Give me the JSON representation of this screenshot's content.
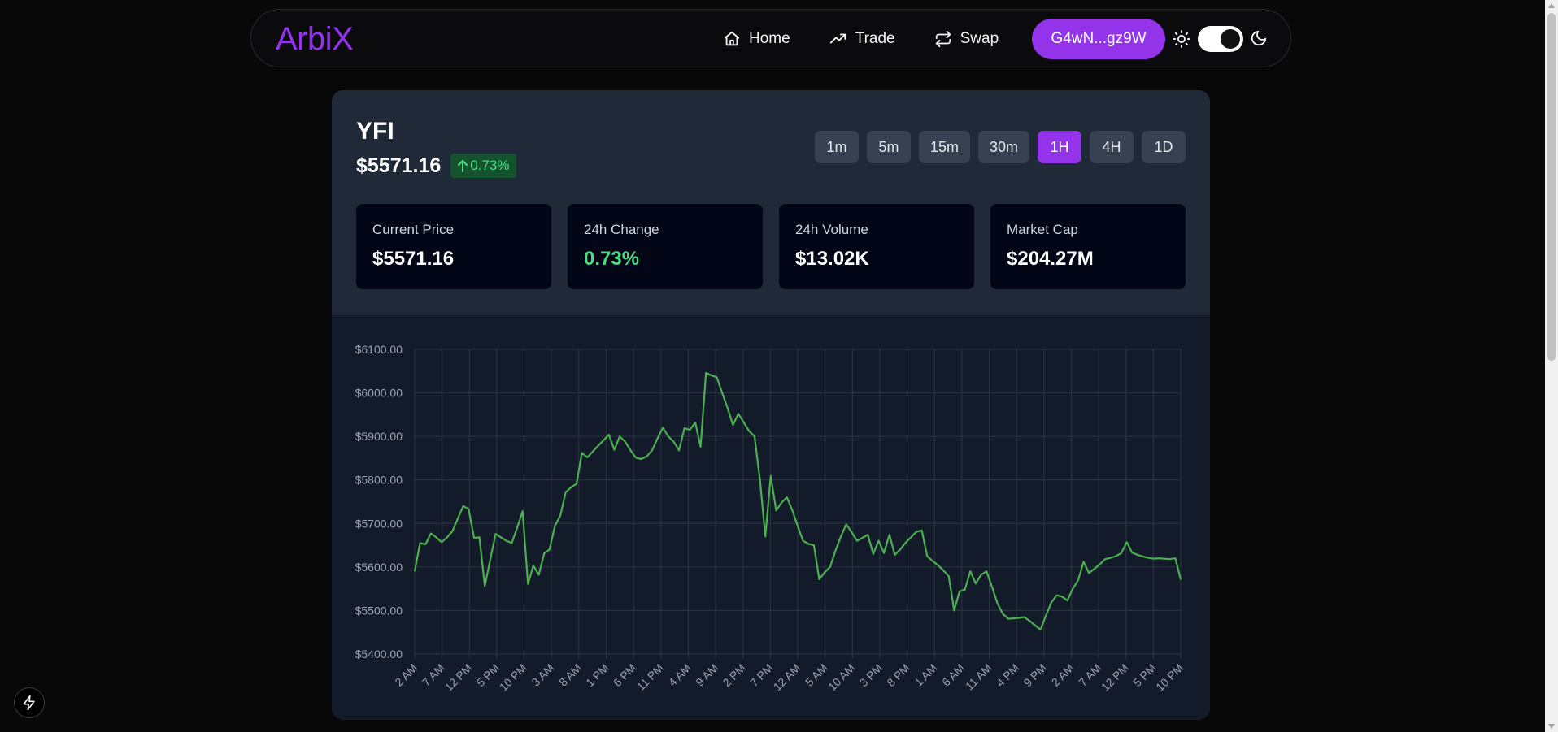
{
  "app": {
    "logo": "ArbiX"
  },
  "nav": {
    "links": [
      {
        "label": "Home",
        "icon": "home-icon"
      },
      {
        "label": "Trade",
        "icon": "trend-up-icon"
      },
      {
        "label": "Swap",
        "icon": "swap-icon"
      }
    ],
    "wallet_label": "G4wN...gz9W"
  },
  "token": {
    "symbol": "YFI",
    "price": "$5571.16",
    "change_badge": "0.73%"
  },
  "timeframes": [
    "1m",
    "5m",
    "15m",
    "30m",
    "1H",
    "4H",
    "1D"
  ],
  "active_timeframe": "1H",
  "stats": [
    {
      "label": "Current Price",
      "value": "$5571.16"
    },
    {
      "label": "24h Change",
      "value": "0.73%"
    },
    {
      "label": "24h Volume",
      "value": "$13.02K"
    },
    {
      "label": "Market Cap",
      "value": "$204.27M"
    }
  ],
  "colors": {
    "accent": "#9333ea",
    "positive": "#4ade80",
    "line": "#4caf50",
    "card_bg": "#1f2938",
    "chart_bg": "#131b2a"
  },
  "chart_data": {
    "type": "line",
    "ylim": [
      5400,
      6100
    ],
    "y_ticks": [
      "$6100.00",
      "$6000.00",
      "$5900.00",
      "$5800.00",
      "$5700.00",
      "$5600.00",
      "$5500.00",
      "$5400.00"
    ],
    "x_ticks": [
      "2 AM",
      "7 AM",
      "12 PM",
      "5 PM",
      "10 PM",
      "3 AM",
      "8 AM",
      "1 PM",
      "6 PM",
      "11 PM",
      "4 AM",
      "9 AM",
      "2 PM",
      "7 PM",
      "12 AM",
      "5 AM",
      "10 AM",
      "3 PM",
      "8 PM",
      "1 AM",
      "6 AM",
      "11 AM",
      "4 PM",
      "9 PM",
      "2 AM",
      "7 AM",
      "12 PM",
      "5 PM",
      "10 PM"
    ],
    "grid": true,
    "series": [
      {
        "values": [
          5590,
          5655,
          5652,
          5677,
          5668,
          5657,
          5668,
          5682,
          5712,
          5740,
          5733,
          5667,
          5668,
          5556,
          5617,
          5676,
          5668,
          5660,
          5655,
          5690,
          5728,
          5561,
          5603,
          5582,
          5631,
          5640,
          5695,
          5718,
          5772,
          5783,
          5791,
          5862,
          5852,
          5865,
          5878,
          5891,
          5904,
          5869,
          5900,
          5888,
          5868,
          5851,
          5848,
          5854,
          5868,
          5895,
          5920,
          5900,
          5888,
          5868,
          5919,
          5915,
          5932,
          5876,
          6046,
          6040,
          6036,
          6000,
          5965,
          5926,
          5952,
          5932,
          5912,
          5900,
          5800,
          5670,
          5809,
          5730,
          5748,
          5760,
          5730,
          5694,
          5660,
          5653,
          5650,
          5572,
          5588,
          5600,
          5637,
          5670,
          5698,
          5680,
          5660,
          5667,
          5674,
          5630,
          5660,
          5632,
          5674,
          5628,
          5640,
          5656,
          5668,
          5681,
          5684,
          5625,
          5614,
          5604,
          5592,
          5579,
          5500,
          5544,
          5548,
          5590,
          5562,
          5582,
          5590,
          5555,
          5517,
          5493,
          5481,
          5482,
          5483,
          5485,
          5476,
          5466,
          5456,
          5488,
          5518,
          5535,
          5532,
          5523,
          5550,
          5570,
          5612,
          5586,
          5596,
          5606,
          5618,
          5621,
          5625,
          5632,
          5657,
          5633,
          5628,
          5624,
          5621,
          5619,
          5620,
          5619,
          5618,
          5620,
          5571
        ]
      }
    ]
  }
}
